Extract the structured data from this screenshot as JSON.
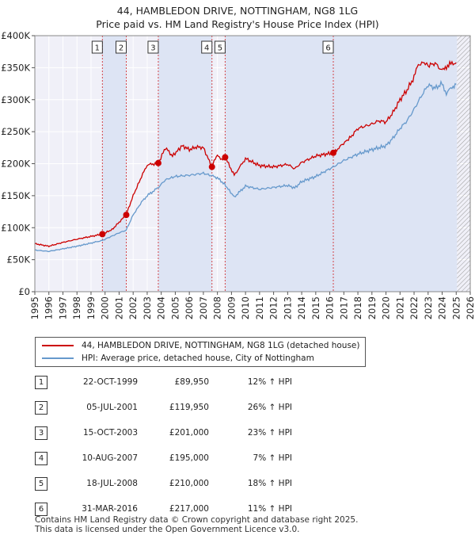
{
  "title_line1": "44, HAMBLEDON DRIVE, NOTTINGHAM, NG8 1LG",
  "title_line2": "Price paid vs. HM Land Registry's House Price Index (HPI)",
  "chart_data": {
    "type": "line",
    "title": "44, HAMBLEDON DRIVE, NOTTINGHAM, NG8 1LG — Price paid vs. HM Land Registry's House Price Index (HPI)",
    "x_range": [
      1995,
      2026
    ],
    "ylim": [
      0,
      400000
    ],
    "y_ticks": [
      0,
      50000,
      100000,
      150000,
      200000,
      250000,
      300000,
      350000,
      400000
    ],
    "y_tick_labels": [
      "£0",
      "£50K",
      "£100K",
      "£150K",
      "£200K",
      "£250K",
      "£300K",
      "£350K",
      "£400K"
    ],
    "x_ticks": [
      1995,
      1996,
      1997,
      1998,
      1999,
      2000,
      2001,
      2002,
      2003,
      2004,
      2005,
      2006,
      2007,
      2008,
      2009,
      2010,
      2011,
      2012,
      2013,
      2014,
      2015,
      2016,
      2017,
      2018,
      2019,
      2020,
      2021,
      2022,
      2023,
      2024,
      2025,
      2026
    ],
    "grid": true,
    "series": [
      {
        "name": "44, HAMBLEDON DRIVE, NOTTINGHAM, NG8 1LG (detached house)",
        "color": "#cc0000",
        "x": [
          1995,
          1996,
          1997,
          1998,
          1999.8,
          2000.5,
          2001.5,
          2002,
          2002.6,
          2003,
          2003.8,
          2004.3,
          2004.8,
          2005.5,
          2006,
          2006.5,
          2007,
          2007.6,
          2008,
          2008.3,
          2008.55,
          2009.2,
          2010,
          2011,
          2012,
          2013,
          2013.5,
          2014,
          2015,
          2016.25,
          2016.8,
          2017.5,
          2018,
          2019,
          2019.5,
          2020,
          2020.5,
          2021,
          2021.5,
          2022,
          2022.3,
          2022.8,
          2023,
          2023.5,
          2024,
          2024.3,
          2024.7,
          2025.0
        ],
        "values": [
          75000,
          71000,
          77000,
          82000,
          89950,
          97000,
          119950,
          150000,
          180000,
          198000,
          201000,
          225000,
          212000,
          228000,
          222000,
          226000,
          225000,
          195000,
          215000,
          205000,
          210000,
          182000,
          208000,
          197000,
          195000,
          199000,
          192000,
          202000,
          212000,
          217000,
          228000,
          242000,
          255000,
          262000,
          267000,
          265000,
          280000,
          300000,
          315000,
          335000,
          355000,
          358000,
          353000,
          357000,
          345000,
          352000,
          357000,
          358000
        ]
      },
      {
        "name": "HPI: Average price, detached house, City of Nottingham",
        "color": "#6699cc",
        "x": [
          1995,
          1996,
          1997,
          1998,
          1999,
          1999.8,
          2001,
          2001.5,
          2002,
          2002.6,
          2003,
          2003.8,
          2004.3,
          2005,
          2006,
          2007,
          2007.6,
          2008,
          2008.5,
          2009.2,
          2010,
          2011,
          2012,
          2013,
          2013.5,
          2014,
          2015,
          2016.25,
          2017,
          2018,
          2019,
          2020,
          2020.5,
          2021,
          2021.5,
          2022,
          2022.5,
          2023,
          2023.5,
          2024,
          2024.3,
          2024.7,
          2025.0
        ],
        "values": [
          65000,
          63000,
          67000,
          71000,
          76000,
          80000,
          92000,
          96000,
          120000,
          140000,
          150000,
          163000,
          175000,
          180000,
          182000,
          185000,
          181000,
          178000,
          168000,
          148000,
          165000,
          160000,
          163000,
          166000,
          162000,
          172000,
          180000,
          195000,
          205000,
          215000,
          222000,
          228000,
          240000,
          255000,
          267000,
          285000,
          305000,
          323000,
          318000,
          325000,
          310000,
          320000,
          324000
        ]
      }
    ],
    "sale_markers": [
      {
        "label": "1",
        "x": 1999.81,
        "value": 89950
      },
      {
        "label": "2",
        "x": 2001.51,
        "value": 119950
      },
      {
        "label": "3",
        "x": 2003.79,
        "value": 201000
      },
      {
        "label": "4",
        "x": 2007.61,
        "value": 195000
      },
      {
        "label": "5",
        "x": 2008.55,
        "value": 210000
      },
      {
        "label": "6",
        "x": 2016.25,
        "value": 217000
      }
    ],
    "future_hatch_from": 2025.05
  },
  "legend": {
    "property": "44, HAMBLEDON DRIVE, NOTTINGHAM, NG8 1LG (detached house)",
    "hpi": "HPI: Average price, detached house, City of Nottingham"
  },
  "sales": [
    {
      "num": "1",
      "date": "22-OCT-1999",
      "price": "£89,950",
      "hpi": "12% ↑ HPI"
    },
    {
      "num": "2",
      "date": "05-JUL-2001",
      "price": "£119,950",
      "hpi": "26% ↑ HPI"
    },
    {
      "num": "3",
      "date": "15-OCT-2003",
      "price": "£201,000",
      "hpi": "23% ↑ HPI"
    },
    {
      "num": "4",
      "date": "10-AUG-2007",
      "price": "£195,000",
      "hpi": "7% ↑ HPI"
    },
    {
      "num": "5",
      "date": "18-JUL-2008",
      "price": "£210,000",
      "hpi": "18% ↑ HPI"
    },
    {
      "num": "6",
      "date": "31-MAR-2016",
      "price": "£217,000",
      "hpi": "11% ↑ HPI"
    }
  ],
  "footer": {
    "line1": "Contains HM Land Registry data © Crown copyright and database right 2025.",
    "line2": "This data is licensed under the Open Government Licence v3.0."
  }
}
